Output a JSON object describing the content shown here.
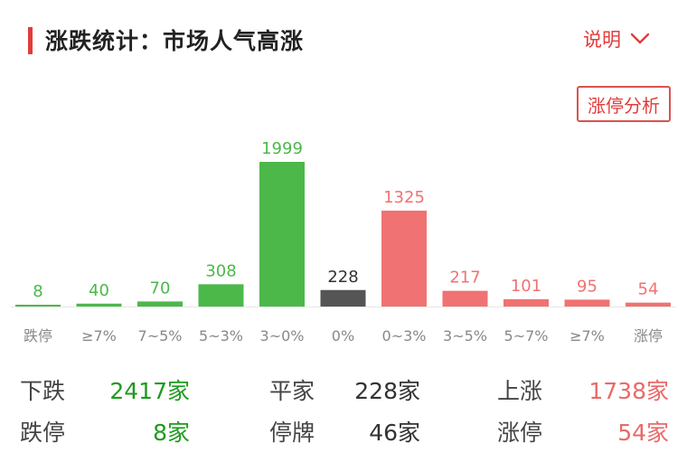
{
  "header": {
    "title": "涨跌统计：市场人气高涨",
    "explain_label": "说明",
    "analysis_button": "涨停分析"
  },
  "colors": {
    "accent": "#e23b3b",
    "down_green": "#4cb84a",
    "flat_gray": "#555555",
    "up_red": "#f07272",
    "green_text": "#1f9a1f",
    "red_text": "#e86a6a",
    "neutral_text": "#333333"
  },
  "chart_data": {
    "type": "bar",
    "categories": [
      "跌停",
      "≥7%",
      "7~5%",
      "5~3%",
      "3~0%",
      "0%",
      "0~3%",
      "3~5%",
      "5~7%",
      "≥7%",
      "涨停"
    ],
    "values": [
      8,
      40,
      70,
      308,
      1999,
      228,
      1325,
      217,
      101,
      95,
      54
    ],
    "groups": [
      "down",
      "down",
      "down",
      "down",
      "down",
      "flat",
      "up",
      "up",
      "up",
      "up",
      "up"
    ],
    "ylim": [
      0,
      1999
    ],
    "grid": false,
    "legend": "none"
  },
  "summary": {
    "down": {
      "label": "下跌",
      "value": "2417家"
    },
    "flat": {
      "label": "平家",
      "value": "228家"
    },
    "up": {
      "label": "上涨",
      "value": "1738家"
    },
    "limit_down": {
      "label": "跌停",
      "value": "8家"
    },
    "suspended": {
      "label": "停牌",
      "value": "46家"
    },
    "limit_up": {
      "label": "涨停",
      "value": "54家"
    }
  }
}
